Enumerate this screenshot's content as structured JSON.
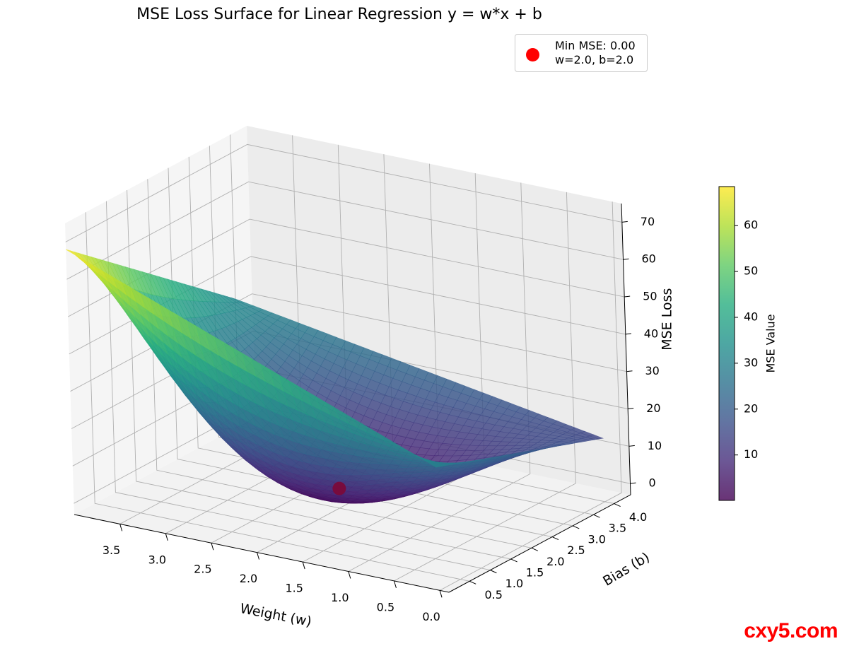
{
  "chart_data": {
    "type": "surface",
    "title": "MSE Loss Surface for Linear Regression y = w*x + b",
    "xlabel": "Weight (w)",
    "ylabel": "Bias (b)",
    "zlabel": "MSE Loss",
    "xlim": [
      -0.1,
      4.0
    ],
    "ylim": [
      0.0,
      4.4
    ],
    "zlim": [
      -3,
      75
    ],
    "x_ticks": [
      0.0,
      0.5,
      1.0,
      1.5,
      2.0,
      2.5,
      3.0,
      3.5
    ],
    "y_ticks": [
      0.5,
      1.0,
      1.5,
      2.0,
      2.5,
      3.0,
      3.5,
      4.0
    ],
    "z_ticks": [
      0,
      10,
      20,
      30,
      40,
      50,
      60,
      70
    ],
    "surface_corner_values": [
      {
        "w": 4.0,
        "b": 0.0,
        "mse": 68
      },
      {
        "w": 4.0,
        "b": 4.0,
        "mse": 31
      },
      {
        "w": 0.0,
        "b": 0.0,
        "mse": 30
      },
      {
        "w": 0.0,
        "b": 4.0,
        "mse": 14
      }
    ],
    "minimum": {
      "w": 2.0,
      "b": 2.0,
      "mse": 0.0
    },
    "legend": {
      "label_line1": "Min MSE: 0.00",
      "label_line2": "w=2.0, b=2.0",
      "position": "top-right"
    },
    "colorbar": {
      "label": "MSE Value",
      "ticks": [
        10,
        20,
        30,
        40,
        50,
        60
      ],
      "range": [
        0.1,
        68.5
      ],
      "colormap": "viridis"
    }
  },
  "watermark": "cxy5.com",
  "colors": {
    "min_marker": "#ff0000",
    "watermark": "#ff0000"
  }
}
